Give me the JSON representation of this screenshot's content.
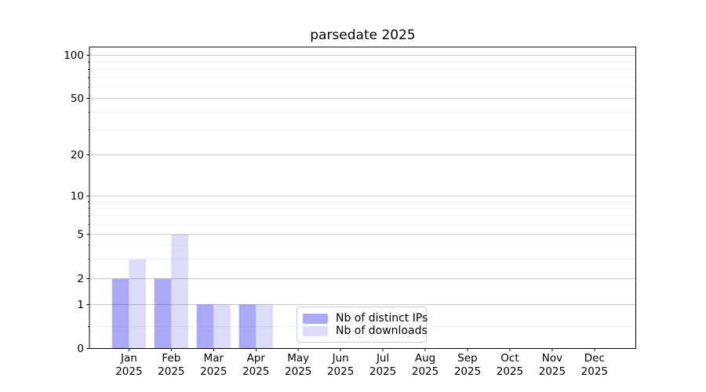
{
  "chart_data": {
    "type": "bar",
    "title": "parsedate 2025",
    "categories": [
      "Jan",
      "Feb",
      "Mar",
      "Apr",
      "May",
      "Jun",
      "Jul",
      "Aug",
      "Sep",
      "Oct",
      "Nov",
      "Dec"
    ],
    "year": "2025",
    "series": [
      {
        "name": "Nb of distinct IPs",
        "color": "#a9a9f8",
        "values": [
          2,
          2,
          1,
          1,
          0,
          0,
          0,
          0,
          0,
          0,
          0,
          0
        ]
      },
      {
        "name": "Nb of downloads",
        "color": "#dcdcf8",
        "values": [
          3,
          5,
          1,
          1,
          0,
          0,
          0,
          0,
          0,
          0,
          0,
          0
        ]
      }
    ],
    "y_axis": {
      "scale": "log-like",
      "ticks": [
        0,
        1,
        2,
        5,
        10,
        20,
        50,
        100
      ],
      "minor_ticks": [
        0.5,
        3,
        4,
        6,
        7,
        8,
        9,
        30,
        40,
        60,
        70,
        80,
        90
      ],
      "range": [
        0,
        100
      ]
    },
    "x_axis": {
      "label_format": "month over year"
    },
    "grid": true,
    "legend_position": "bottom-center",
    "colors": {
      "major_grid": "rgba(0,0,0,0.21)",
      "minor_grid": "rgba(0,0,0,0.055)",
      "spine": "#000000",
      "text": "#000000"
    }
  }
}
